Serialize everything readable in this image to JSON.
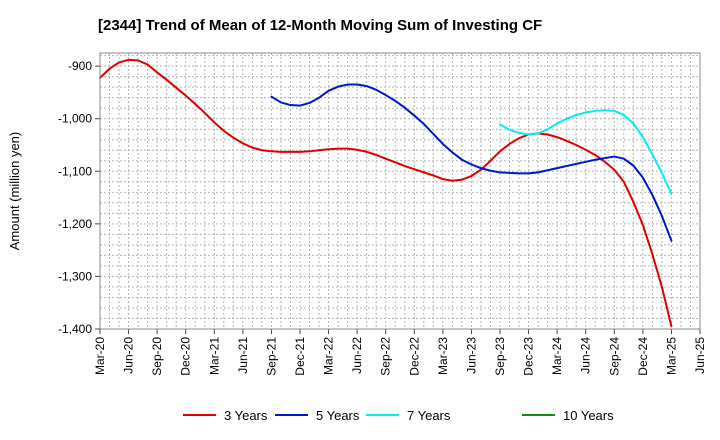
{
  "chart_data": {
    "type": "line",
    "title": "[2344]  Trend of Mean of 12-Month Moving Sum of Investing CF",
    "xlabel": "",
    "ylabel": "Amount (million yen)",
    "ylim": [
      -1400,
      -875
    ],
    "yticks": [
      -900,
      -1000,
      -1100,
      -1200,
      -1300,
      -1400
    ],
    "ytick_labels": [
      "-900",
      "-1,000",
      "-1,100",
      "-1,200",
      "-1,300",
      "-1,400"
    ],
    "xticks": [
      "2020-03",
      "2020-06",
      "2020-09",
      "2020-12",
      "2021-03",
      "2021-06",
      "2021-09",
      "2021-12",
      "2022-03",
      "2022-06",
      "2022-09",
      "2022-12",
      "2023-03",
      "2023-06",
      "2023-09",
      "2023-12",
      "2024-03",
      "2024-06",
      "2024-09",
      "2024-12",
      "2025-03",
      "2025-06"
    ],
    "xtick_labels": [
      "Mar-20",
      "Jun-20",
      "Sep-20",
      "Dec-20",
      "Mar-21",
      "Jun-21",
      "Sep-21",
      "Dec-21",
      "Mar-22",
      "Jun-22",
      "Sep-22",
      "Dec-22",
      "Mar-23",
      "Jun-23",
      "Sep-23",
      "Dec-23",
      "Mar-24",
      "Jun-24",
      "Sep-24",
      "Dec-24",
      "Mar-25",
      "Jun-25"
    ],
    "grid": true,
    "legend_position": "bottom",
    "series": [
      {
        "name": "3 Years",
        "color": "#e00000",
        "x": [
          "2020-03",
          "2020-04",
          "2020-05",
          "2020-06",
          "2020-07",
          "2020-08",
          "2020-09",
          "2020-10",
          "2020-11",
          "2020-12",
          "2021-01",
          "2021-02",
          "2021-03",
          "2021-04",
          "2021-05",
          "2021-06",
          "2021-07",
          "2021-08",
          "2021-09",
          "2021-10",
          "2021-11",
          "2021-12",
          "2022-01",
          "2022-02",
          "2022-03",
          "2022-04",
          "2022-05",
          "2022-06",
          "2022-07",
          "2022-08",
          "2022-09",
          "2022-10",
          "2022-11",
          "2022-12",
          "2023-01",
          "2023-02",
          "2023-03",
          "2023-04",
          "2023-05",
          "2023-06",
          "2023-07",
          "2023-08",
          "2023-09",
          "2023-10",
          "2023-11",
          "2023-12",
          "2024-01",
          "2024-02",
          "2024-03",
          "2024-04",
          "2024-05",
          "2024-06",
          "2024-07",
          "2024-08",
          "2024-09",
          "2024-10",
          "2024-11",
          "2024-12",
          "2025-01",
          "2025-02",
          "2025-03"
        ],
        "values": [
          -922,
          -905,
          -893,
          -888,
          -889,
          -897,
          -912,
          -926,
          -941,
          -956,
          -972,
          -989,
          -1007,
          -1023,
          -1036,
          -1047,
          -1055,
          -1060,
          -1062,
          -1063,
          -1063,
          -1063,
          -1062,
          -1060,
          -1058,
          -1057,
          -1057,
          -1059,
          -1063,
          -1069,
          -1076,
          -1083,
          -1090,
          -1096,
          -1102,
          -1108,
          -1115,
          -1118,
          -1116,
          -1109,
          -1097,
          -1080,
          -1062,
          -1048,
          -1037,
          -1030,
          -1028,
          -1030,
          -1035,
          -1042,
          -1050,
          -1059,
          -1069,
          -1082,
          -1097,
          -1120,
          -1158,
          -1202,
          -1258,
          -1320,
          -1395
        ]
      },
      {
        "name": "5 Years",
        "color": "#0018c8",
        "x": [
          "2021-09",
          "2021-10",
          "2021-11",
          "2021-12",
          "2022-01",
          "2022-02",
          "2022-03",
          "2022-04",
          "2022-05",
          "2022-06",
          "2022-07",
          "2022-08",
          "2022-09",
          "2022-10",
          "2022-11",
          "2022-12",
          "2023-01",
          "2023-02",
          "2023-03",
          "2023-04",
          "2023-05",
          "2023-06",
          "2023-07",
          "2023-08",
          "2023-09",
          "2023-10",
          "2023-11",
          "2023-12",
          "2024-01",
          "2024-02",
          "2024-03",
          "2024-04",
          "2024-05",
          "2024-06",
          "2024-07",
          "2024-08",
          "2024-09",
          "2024-10",
          "2024-11",
          "2024-12",
          "2025-01",
          "2025-02",
          "2025-03"
        ],
        "values": [
          -958,
          -969,
          -974,
          -975,
          -970,
          -960,
          -947,
          -939,
          -935,
          -935,
          -938,
          -945,
          -955,
          -966,
          -979,
          -994,
          -1010,
          -1029,
          -1048,
          -1064,
          -1078,
          -1087,
          -1094,
          -1099,
          -1102,
          -1103,
          -1104,
          -1104,
          -1102,
          -1098,
          -1094,
          -1090,
          -1086,
          -1082,
          -1078,
          -1075,
          -1072,
          -1076,
          -1089,
          -1112,
          -1145,
          -1185,
          -1232
        ]
      },
      {
        "name": "7 Years",
        "color": "#00f0f0",
        "x": [
          "2023-09",
          "2023-10",
          "2023-11",
          "2023-12",
          "2024-01",
          "2024-02",
          "2024-03",
          "2024-04",
          "2024-05",
          "2024-06",
          "2024-07",
          "2024-08",
          "2024-09",
          "2024-10",
          "2024-11",
          "2024-12",
          "2025-01",
          "2025-02",
          "2025-03"
        ],
        "values": [
          -1011,
          -1021,
          -1027,
          -1030,
          -1028,
          -1020,
          -1009,
          -1000,
          -993,
          -988,
          -985,
          -984,
          -985,
          -993,
          -1009,
          -1035,
          -1068,
          -1103,
          -1143
        ]
      },
      {
        "name": "10 Years",
        "color": "#138a13",
        "x": [],
        "values": []
      }
    ]
  }
}
